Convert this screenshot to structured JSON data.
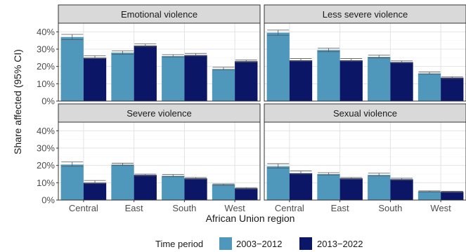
{
  "chart_data": {
    "type": "bar",
    "ylabel": "Share affected (95% CI)",
    "xlabel": "African Union region",
    "categories": [
      "Central",
      "East",
      "South",
      "West"
    ],
    "ylim": [
      0,
      0.45
    ],
    "yticks": [
      0,
      0.1,
      0.2,
      0.3,
      0.4
    ],
    "ytick_labels": [
      "0%",
      "10%",
      "20%",
      "30%",
      "40%"
    ],
    "grid": true,
    "legend": {
      "title": "Time period",
      "position": "bottom"
    },
    "series_styles": [
      {
        "name": "2003−2012",
        "color": "#4f97bb"
      },
      {
        "name": "2013−2022",
        "color": "#0b1766"
      }
    ],
    "panels": [
      {
        "title": "Emotional violence",
        "series": [
          {
            "name": "2003−2012",
            "values": [
              0.37,
              0.28,
              0.26,
              0.185
            ],
            "ci_low": [
              0.355,
              0.27,
              0.255,
              0.18
            ],
            "ci_high": [
              0.385,
              0.29,
              0.268,
              0.195
            ]
          },
          {
            "name": "2013−2022",
            "values": [
              0.25,
              0.32,
              0.265,
              0.23
            ],
            "ci_low": [
              0.245,
              0.315,
              0.26,
              0.225
            ],
            "ci_high": [
              0.262,
              0.33,
              0.275,
              0.237
            ]
          }
        ]
      },
      {
        "title": "Less severe violence",
        "series": [
          {
            "name": "2003−2012",
            "values": [
              0.395,
              0.295,
              0.255,
              0.16
            ],
            "ci_low": [
              0.38,
              0.285,
              0.25,
              0.155
            ],
            "ci_high": [
              0.41,
              0.305,
              0.265,
              0.168
            ]
          },
          {
            "name": "2013−2022",
            "values": [
              0.235,
              0.235,
              0.225,
              0.135
            ],
            "ci_low": [
              0.23,
              0.23,
              0.22,
              0.13
            ],
            "ci_high": [
              0.245,
              0.245,
              0.232,
              0.14
            ]
          }
        ]
      },
      {
        "title": "Severe violence",
        "series": [
          {
            "name": "2003−2012",
            "values": [
              0.205,
              0.205,
              0.14,
              0.09
            ],
            "ci_low": [
              0.195,
              0.2,
              0.135,
              0.085
            ],
            "ci_high": [
              0.22,
              0.213,
              0.148,
              0.093
            ]
          },
          {
            "name": "2013−2022",
            "values": [
              0.1,
              0.145,
              0.125,
              0.068
            ],
            "ci_low": [
              0.095,
              0.14,
              0.12,
              0.064
            ],
            "ci_high": [
              0.113,
              0.15,
              0.13,
              0.072
            ]
          }
        ]
      },
      {
        "title": "Sexual violence",
        "series": [
          {
            "name": "2003−2012",
            "values": [
              0.195,
              0.15,
              0.145,
              0.05
            ],
            "ci_low": [
              0.185,
              0.145,
              0.14,
              0.047
            ],
            "ci_high": [
              0.21,
              0.158,
              0.155,
              0.053
            ]
          },
          {
            "name": "2013−2022",
            "values": [
              0.155,
              0.125,
              0.12,
              0.048
            ],
            "ci_low": [
              0.15,
              0.12,
              0.115,
              0.045
            ],
            "ci_high": [
              0.168,
              0.13,
              0.126,
              0.051
            ]
          }
        ]
      }
    ]
  }
}
